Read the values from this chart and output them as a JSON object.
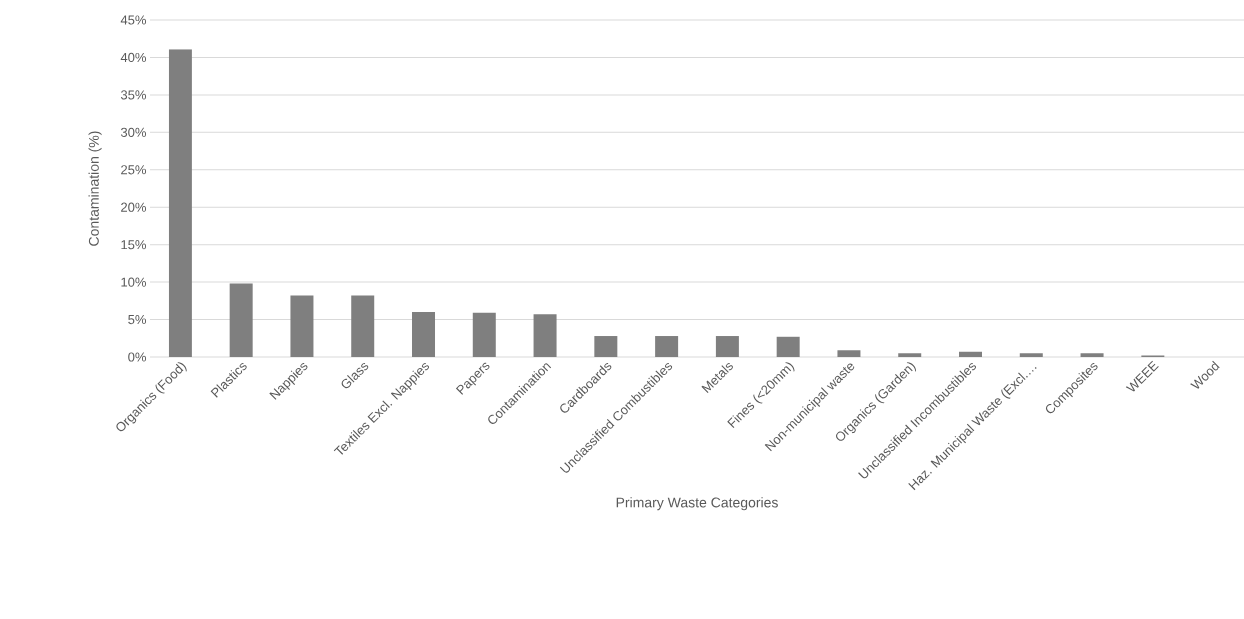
{
  "chart_data": {
    "type": "bar",
    "xlabel": "Primary Waste Categories",
    "ylabel": "Contamination (%)",
    "categories": [
      "Organics (Food)",
      "Plastics",
      "Nappies",
      "Glass",
      "Textiles Excl. Nappies",
      "Papers",
      "Contamination",
      "Cardboards",
      "Unclassified Combustibles",
      "Metals",
      "Fines (<20mm)",
      "Non-municipal waste",
      "Organics (Garden)",
      "Unclassified Incombustibles",
      "Haz. Municipal Waste (Excl.…",
      "Composites",
      "WEEE",
      "Wood"
    ],
    "values": [
      41.1,
      9.8,
      8.2,
      8.2,
      6.0,
      5.9,
      5.7,
      2.8,
      2.8,
      2.8,
      2.7,
      0.9,
      0.5,
      0.7,
      0.5,
      0.5,
      0.2,
      0
    ],
    "color": "#7f7f7f",
    "ylim": [
      0,
      45
    ],
    "yticks": [
      {
        "value": 0,
        "label": "0%"
      },
      {
        "value": 5,
        "label": "5%"
      },
      {
        "value": 10,
        "label": "10%"
      },
      {
        "value": 15,
        "label": "15%"
      },
      {
        "value": 20,
        "label": "20%"
      },
      {
        "value": 25,
        "label": "25%"
      },
      {
        "value": 30,
        "label": "30%"
      },
      {
        "value": 35,
        "label": "35%"
      },
      {
        "value": 40,
        "label": "40%"
      },
      {
        "value": 45,
        "label": "45%"
      }
    ],
    "grid": "y"
  }
}
